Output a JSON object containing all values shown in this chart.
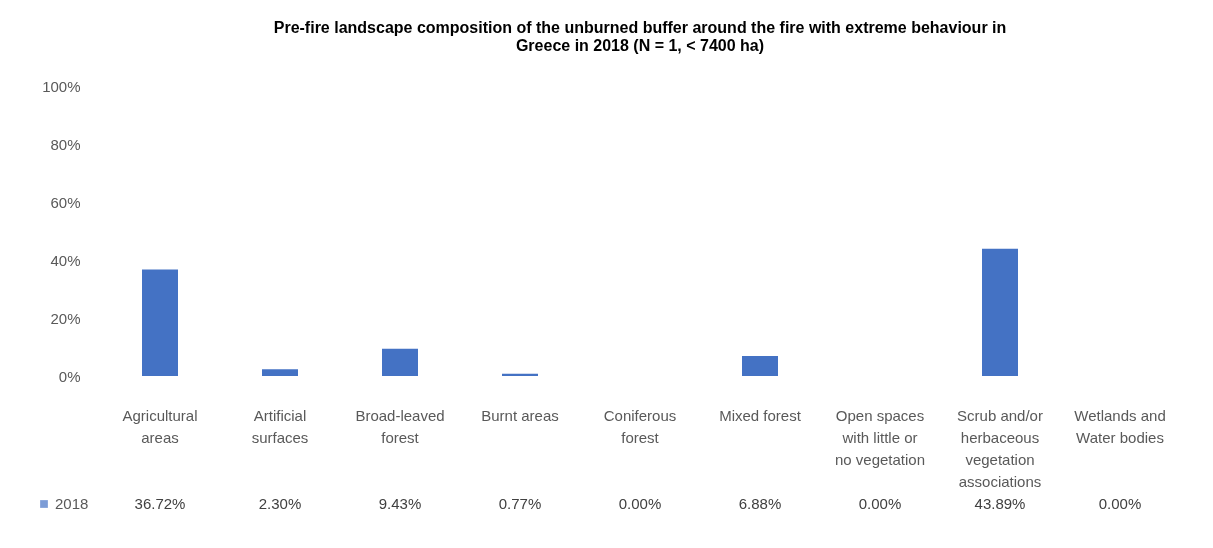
{
  "chart_data": {
    "type": "bar",
    "title": "Pre-fire landscape composition of the unburned buffer around the fire with extreme behaviour in Greece in 2018 (N = 1, < 7400 ha)",
    "categories": [
      "Agricultural areas",
      "Artificial surfaces",
      "Broad-leaved forest",
      "Burnt areas",
      "Coniferous forest",
      "Mixed forest",
      "Open spaces with little or no vegetation",
      "Scrub and/or herbaceous vegetation associations",
      "Wetlands and Water bodies"
    ],
    "series": [
      {
        "name": "2018",
        "color": "#4472c4",
        "values": [
          36.72,
          2.3,
          9.43,
          0.77,
          0.0,
          6.88,
          0.0,
          43.89,
          0.0
        ],
        "value_labels": [
          "36.72%",
          "2.30%",
          "9.43%",
          "0.77%",
          "0.00%",
          "6.88%",
          "0.00%",
          "43.89%",
          "0.00%"
        ]
      }
    ],
    "ylim": [
      0,
      100
    ],
    "yticks": [
      {
        "value": 0,
        "label": "0%"
      },
      {
        "value": 20,
        "label": "20%"
      },
      {
        "value": 40,
        "label": "40%"
      },
      {
        "value": 60,
        "label": "60%"
      },
      {
        "value": 80,
        "label": "80%"
      },
      {
        "value": 100,
        "label": "100%"
      }
    ],
    "grid": false,
    "legend": "bottom left"
  }
}
